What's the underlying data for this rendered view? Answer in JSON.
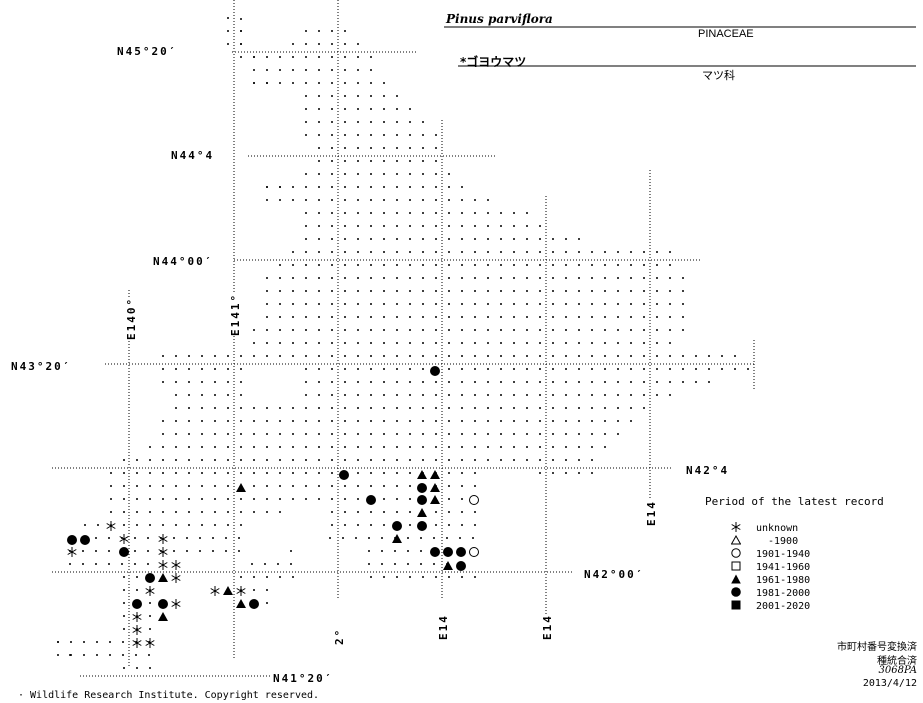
{
  "header": {
    "species": "Pinus parviflora",
    "family": "PINACEAE",
    "japanese_name": "*ゴヨウマツ",
    "japanese_family": "マツ科"
  },
  "map": {
    "grid_labels": {
      "lat_45_20": "N45°20′",
      "lat_44_40": "N44°4",
      "lat_44_00": "N44°00′",
      "lat_43_20": "N43°20′",
      "lat_42_40": "N42°4",
      "lat_42_00": "N42°00′",
      "lat_41_20": "N41°20′",
      "lon_140": "E140°",
      "lon_141": "E141°",
      "lon_142": "2°",
      "lon_143": "E14",
      "lon_144": "E14",
      "lon_145": "E14"
    }
  },
  "legend": {
    "title": "Period of the latest record",
    "items": [
      {
        "symbol": "asterisk",
        "label": "unknown"
      },
      {
        "symbol": "triangle-open",
        "label": "-1900"
      },
      {
        "symbol": "circle-open",
        "label": "1901-1940"
      },
      {
        "symbol": "square-open",
        "label": "1941-1960"
      },
      {
        "symbol": "triangle-filled",
        "label": "1961-1980"
      },
      {
        "symbol": "circle-filled",
        "label": "1981-2000"
      },
      {
        "symbol": "square-filled",
        "label": "2001-2020"
      }
    ]
  },
  "status": {
    "line1": "市町村番号変換済",
    "line2": "種統合済",
    "line3": "3068PA",
    "date": "2013/4/12"
  },
  "copyright": "· Wildlife Research Institute. Copyright reserved."
}
